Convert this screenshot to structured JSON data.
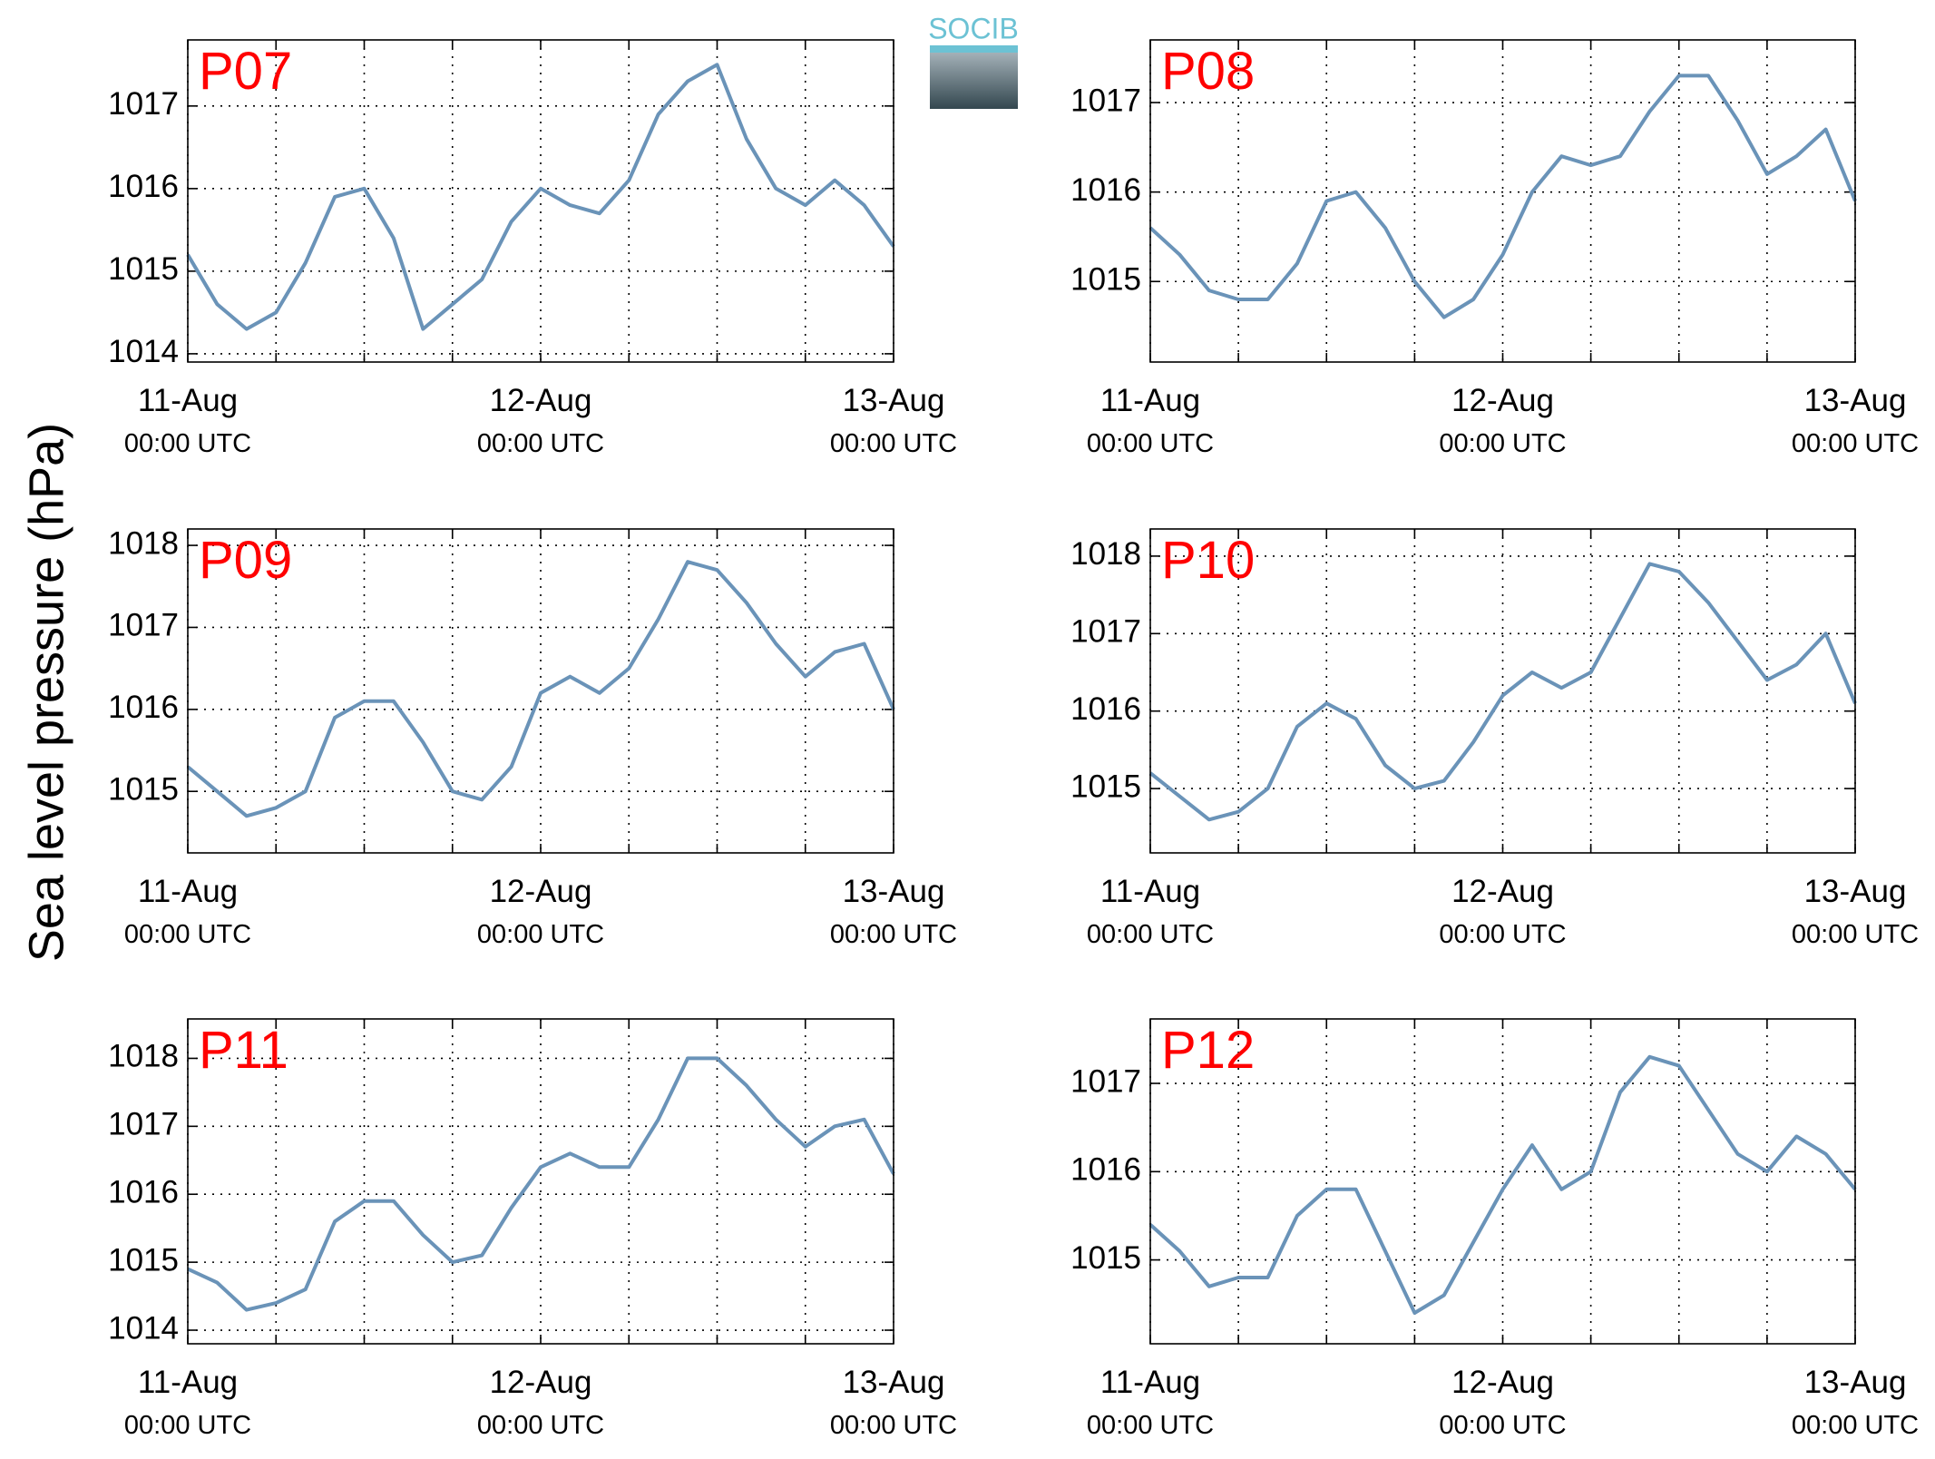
{
  "ylabel": "Sea level pressure (hPa)",
  "logo": "SOCIB",
  "chart_data": [
    {
      "type": "line",
      "title": "P07",
      "x": [
        0,
        2,
        4,
        6,
        8,
        10,
        12,
        14,
        16,
        18,
        20,
        22,
        24,
        26,
        28,
        30,
        32,
        34,
        36,
        38,
        40,
        42,
        44,
        46,
        48
      ],
      "series": [
        {
          "color": "#6a93b8",
          "values": [
            1015.2,
            1014.6,
            1014.3,
            1014.5,
            1015.1,
            1015.9,
            1016.0,
            1015.4,
            1014.3,
            1014.6,
            1014.9,
            1015.6,
            1016.0,
            1015.8,
            1015.7,
            1016.1,
            1016.9,
            1017.3,
            1017.5,
            1016.6,
            1016.0,
            1015.8,
            1016.1,
            1015.8,
            1015.3
          ]
        }
      ],
      "xlim": [
        0,
        48
      ],
      "xticks": [
        {
          "value": 0,
          "label": "11-Aug\n00:00 UTC"
        },
        {
          "value": 24,
          "label": "12-Aug\n00:00 UTC"
        },
        {
          "value": 48,
          "label": "13-Aug\n00:00 UTC"
        }
      ],
      "xminor": [
        6,
        12,
        18,
        30,
        36,
        42
      ],
      "ylim": [
        1013.9,
        1017.8
      ],
      "yticks": [
        1014,
        1015,
        1016,
        1017
      ],
      "grid": true
    },
    {
      "type": "line",
      "title": "P08",
      "x": [
        0,
        2,
        4,
        6,
        8,
        10,
        12,
        14,
        16,
        18,
        20,
        22,
        24,
        26,
        28,
        30,
        32,
        34,
        36,
        38,
        40,
        42,
        44,
        46,
        48
      ],
      "series": [
        {
          "color": "#6a93b8",
          "values": [
            1015.6,
            1015.3,
            1014.9,
            1014.8,
            1014.8,
            1015.2,
            1015.9,
            1016.0,
            1015.6,
            1015.0,
            1014.6,
            1014.8,
            1015.3,
            1016.0,
            1016.4,
            1016.3,
            1016.4,
            1016.9,
            1017.3,
            1017.3,
            1016.8,
            1016.2,
            1016.4,
            1016.7,
            1015.9
          ]
        }
      ],
      "xlim": [
        0,
        48
      ],
      "xticks": [
        {
          "value": 0,
          "label": "11-Aug\n00:00 UTC"
        },
        {
          "value": 24,
          "label": "12-Aug\n00:00 UTC"
        },
        {
          "value": 48,
          "label": "13-Aug\n00:00 UTC"
        }
      ],
      "xminor": [
        6,
        12,
        18,
        30,
        36,
        42
      ],
      "ylim": [
        1014.1,
        1017.7
      ],
      "yticks": [
        1015,
        1016,
        1017
      ],
      "grid": true
    },
    {
      "type": "line",
      "title": "P09",
      "x": [
        0,
        2,
        4,
        6,
        8,
        10,
        12,
        14,
        16,
        18,
        20,
        22,
        24,
        26,
        28,
        30,
        32,
        34,
        36,
        38,
        40,
        42,
        44,
        46,
        48
      ],
      "series": [
        {
          "color": "#6a93b8",
          "values": [
            1015.3,
            1015.0,
            1014.7,
            1014.8,
            1015.0,
            1015.9,
            1016.1,
            1016.1,
            1015.6,
            1015.0,
            1014.9,
            1015.3,
            1016.2,
            1016.4,
            1016.2,
            1016.5,
            1017.1,
            1017.8,
            1017.7,
            1017.3,
            1016.8,
            1016.4,
            1016.7,
            1016.8,
            1016.0
          ]
        }
      ],
      "xlim": [
        0,
        48
      ],
      "xticks": [
        {
          "value": 0,
          "label": "11-Aug\n00:00 UTC"
        },
        {
          "value": 24,
          "label": "12-Aug\n00:00 UTC"
        },
        {
          "value": 48,
          "label": "13-Aug\n00:00 UTC"
        }
      ],
      "xminor": [
        6,
        12,
        18,
        30,
        36,
        42
      ],
      "ylim": [
        1014.25,
        1018.2
      ],
      "yticks": [
        1015,
        1016,
        1017,
        1018
      ],
      "grid": true
    },
    {
      "type": "line",
      "title": "P10",
      "x": [
        0,
        2,
        4,
        6,
        8,
        10,
        12,
        14,
        16,
        18,
        20,
        22,
        24,
        26,
        28,
        30,
        32,
        34,
        36,
        38,
        40,
        42,
        44,
        46,
        48
      ],
      "series": [
        {
          "color": "#6a93b8",
          "values": [
            1015.2,
            1014.9,
            1014.6,
            1014.7,
            1015.0,
            1015.8,
            1016.1,
            1015.9,
            1015.3,
            1015.0,
            1015.1,
            1015.6,
            1016.2,
            1016.5,
            1016.3,
            1016.5,
            1017.2,
            1017.9,
            1017.8,
            1017.4,
            1016.9,
            1016.4,
            1016.6,
            1017.0,
            1016.1
          ]
        }
      ],
      "xlim": [
        0,
        48
      ],
      "xticks": [
        {
          "value": 0,
          "label": "11-Aug\n00:00 UTC"
        },
        {
          "value": 24,
          "label": "12-Aug\n00:00 UTC"
        },
        {
          "value": 48,
          "label": "13-Aug\n00:00 UTC"
        }
      ],
      "xminor": [
        6,
        12,
        18,
        30,
        36,
        42
      ],
      "ylim": [
        1014.17,
        1018.35
      ],
      "yticks": [
        1015,
        1016,
        1017,
        1018
      ],
      "grid": true
    },
    {
      "type": "line",
      "title": "P11",
      "x": [
        0,
        2,
        4,
        6,
        8,
        10,
        12,
        14,
        16,
        18,
        20,
        22,
        24,
        26,
        28,
        30,
        32,
        34,
        36,
        38,
        40,
        42,
        44,
        46,
        48
      ],
      "series": [
        {
          "color": "#6a93b8",
          "values": [
            1014.9,
            1014.7,
            1014.3,
            1014.4,
            1014.6,
            1015.6,
            1015.9,
            1015.9,
            1015.4,
            1015.0,
            1015.1,
            1015.8,
            1016.4,
            1016.6,
            1016.4,
            1016.4,
            1017.1,
            1018.0,
            1018.0,
            1017.6,
            1017.1,
            1016.7,
            1017.0,
            1017.1,
            1016.3
          ]
        }
      ],
      "xlim": [
        0,
        48
      ],
      "xticks": [
        {
          "value": 0,
          "label": "11-Aug\n00:00 UTC"
        },
        {
          "value": 24,
          "label": "12-Aug\n00:00 UTC"
        },
        {
          "value": 48,
          "label": "13-Aug\n00:00 UTC"
        }
      ],
      "xminor": [
        6,
        12,
        18,
        30,
        36,
        42
      ],
      "ylim": [
        1013.8,
        1018.58
      ],
      "yticks": [
        1014,
        1015,
        1016,
        1017,
        1018
      ],
      "grid": true
    },
    {
      "type": "line",
      "title": "P12",
      "x": [
        0,
        2,
        4,
        6,
        8,
        10,
        12,
        14,
        16,
        18,
        20,
        22,
        24,
        26,
        28,
        30,
        32,
        34,
        36,
        38,
        40,
        42,
        44,
        46,
        48
      ],
      "series": [
        {
          "color": "#6a93b8",
          "values": [
            1015.4,
            1015.1,
            1014.7,
            1014.8,
            1014.8,
            1015.5,
            1015.8,
            1015.8,
            1015.1,
            1014.4,
            1014.6,
            1015.2,
            1015.8,
            1016.3,
            1015.8,
            1016.0,
            1016.9,
            1017.3,
            1017.2,
            1016.7,
            1016.2,
            1016.0,
            1016.4,
            1016.2,
            1015.8
          ]
        }
      ],
      "xlim": [
        0,
        48
      ],
      "xticks": [
        {
          "value": 0,
          "label": "11-Aug\n00:00 UTC"
        },
        {
          "value": 24,
          "label": "12-Aug\n00:00 UTC"
        },
        {
          "value": 48,
          "label": "13-Aug\n00:00 UTC"
        }
      ],
      "xminor": [
        6,
        12,
        18,
        30,
        36,
        42
      ],
      "ylim": [
        1014.05,
        1017.73
      ],
      "yticks": [
        1015,
        1016,
        1017
      ],
      "grid": true
    }
  ]
}
